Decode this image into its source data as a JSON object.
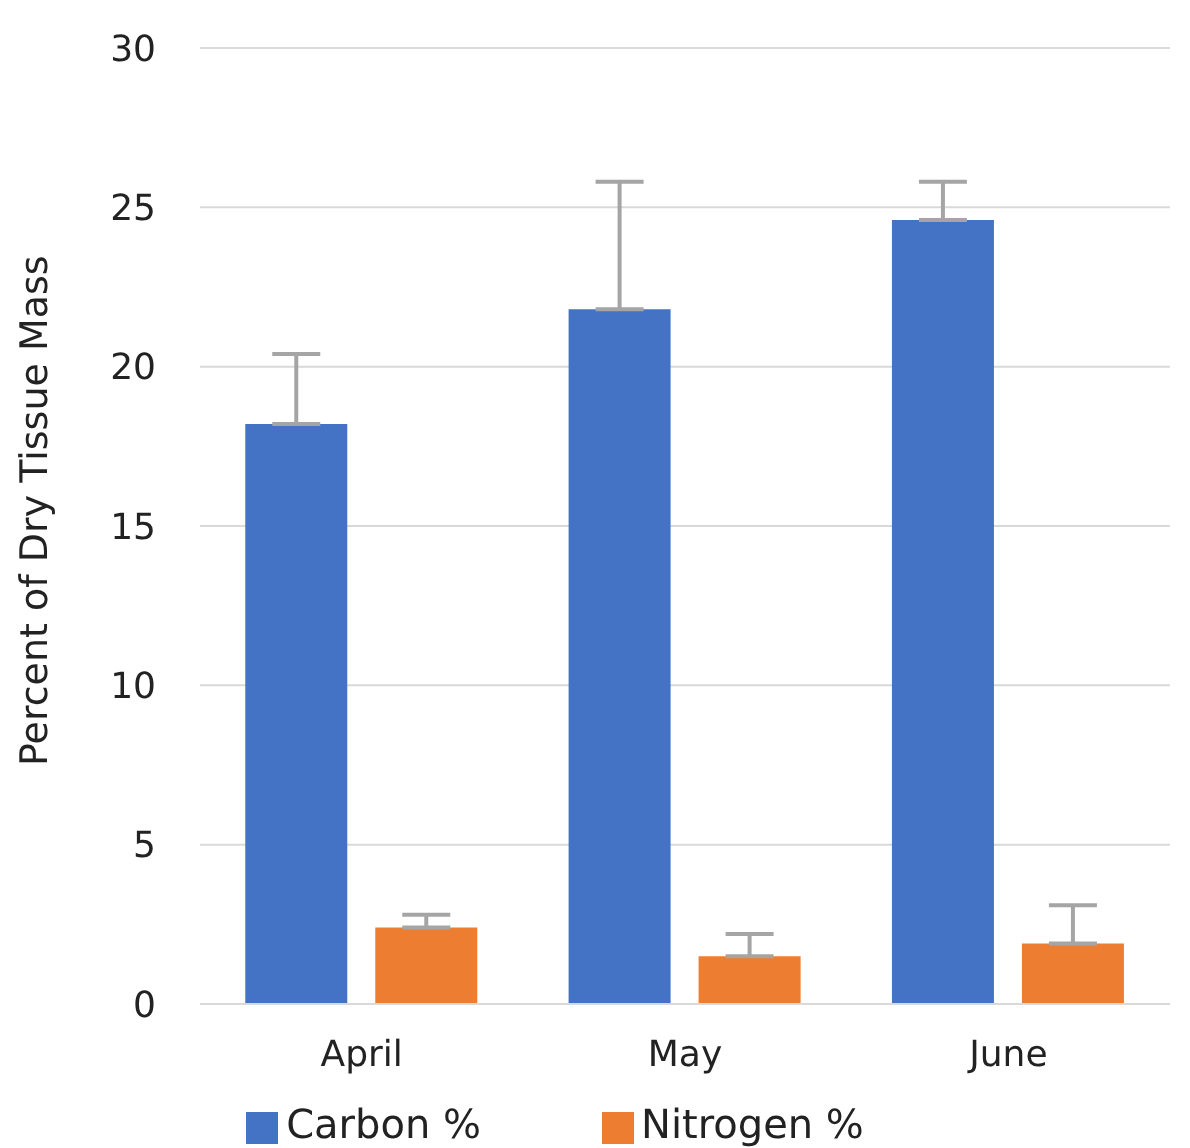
{
  "chart_data": {
    "type": "bar",
    "ylabel": "Percent of Dry Tissue Mass",
    "categories": [
      "April",
      "May",
      "June"
    ],
    "series": [
      {
        "name": "Carbon %",
        "color": "#4472c4",
        "values": [
          18.2,
          21.8,
          24.6
        ],
        "errors": [
          [
            18.2,
            20.4
          ],
          [
            21.8,
            25.8
          ],
          [
            24.6,
            25.8
          ]
        ]
      },
      {
        "name": "Nitrogen %",
        "color": "#ed7d31",
        "values": [
          2.4,
          1.5,
          1.9
        ],
        "errors": [
          [
            2.4,
            2.8
          ],
          [
            1.5,
            2.2
          ],
          [
            1.9,
            3.1
          ]
        ]
      }
    ],
    "ylim": [
      0,
      30
    ],
    "yticks": [
      0,
      5,
      10,
      15,
      20,
      25,
      30
    ],
    "grid": "y",
    "legend": "bottom"
  }
}
